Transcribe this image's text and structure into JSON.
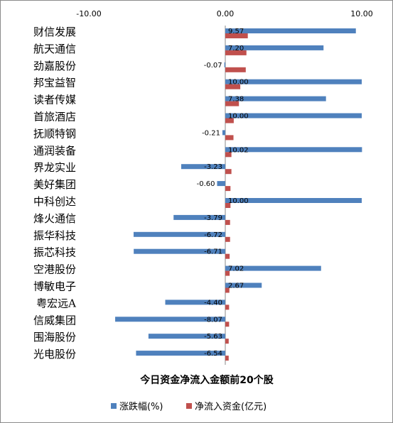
{
  "chart_data": {
    "type": "bar",
    "orientation": "horizontal",
    "title": "今日资金净流入金额前20个股",
    "categories": [
      "财信发展",
      "航天通信",
      "劲嘉股份",
      "邦宝益智",
      "读者传媒",
      "首旅酒店",
      "抚顺特钢",
      "通润装备",
      "界龙实业",
      "美好集团",
      "中科创达",
      "烽火通信",
      "振华科技",
      "振芯科技",
      "空港股份",
      "博敏电子",
      "粤宏远A",
      "信威集团",
      "围海股份",
      "光电股份"
    ],
    "series": [
      {
        "name": "涨跌幅(%)",
        "color": "#4f81bd",
        "values": [
          9.57,
          7.2,
          -0.07,
          10.0,
          7.38,
          10.0,
          -0.21,
          10.02,
          -3.23,
          -0.6,
          10.0,
          -3.79,
          -6.72,
          -6.71,
          7.02,
          2.67,
          -4.4,
          -8.07,
          -5.63,
          -6.54
        ],
        "labels": [
          "9.57",
          "7.20",
          "-0.07",
          "10.00",
          "7.38",
          "10.00",
          "-0.21",
          "10.02",
          "-3.23",
          "-0.60",
          "10.00",
          "-3.79",
          "-6.72",
          "-6.71",
          "7.02",
          "2.67",
          "-4.40",
          "-8.07",
          "-5.63",
          "-6.54"
        ]
      },
      {
        "name": "净流入资金(亿元)",
        "color": "#c0504d",
        "values": [
          1.65,
          1.55,
          1.5,
          1.1,
          1.0,
          0.62,
          0.6,
          0.45,
          0.45,
          0.38,
          0.38,
          0.35,
          0.35,
          0.32,
          0.32,
          0.3,
          0.28,
          0.28,
          0.25,
          0.25
        ]
      }
    ],
    "xlim": [
      -10,
      10
    ],
    "xticks": [
      "-10.00",
      "0.00",
      "10.00"
    ],
    "legend_position": "bottom",
    "grid": false
  }
}
